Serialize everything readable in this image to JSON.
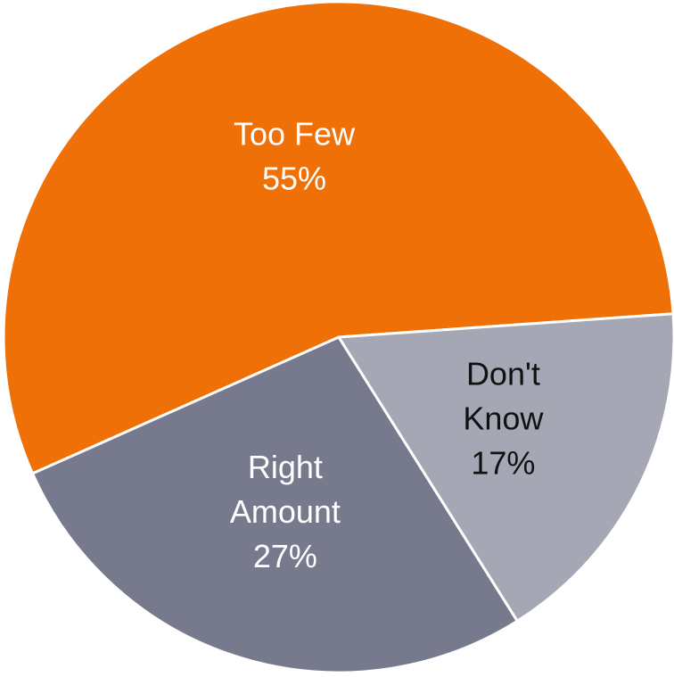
{
  "chart_data": {
    "type": "pie",
    "title": "",
    "slices": [
      {
        "label_lines": [
          "Too Few"
        ],
        "value_label": "55%",
        "value": 55,
        "color": "#f07008",
        "text_color": "#ffffff"
      },
      {
        "label_lines": [
          "Right",
          "Amount"
        ],
        "value_label": "27%",
        "value": 27,
        "color": "#767a8c",
        "text_color": "#ffffff"
      },
      {
        "label_lines": [
          "Don't",
          "Know"
        ],
        "value_label": "17%",
        "value": 17,
        "color": "#a5a8b4",
        "text_color": "#111111"
      }
    ]
  }
}
